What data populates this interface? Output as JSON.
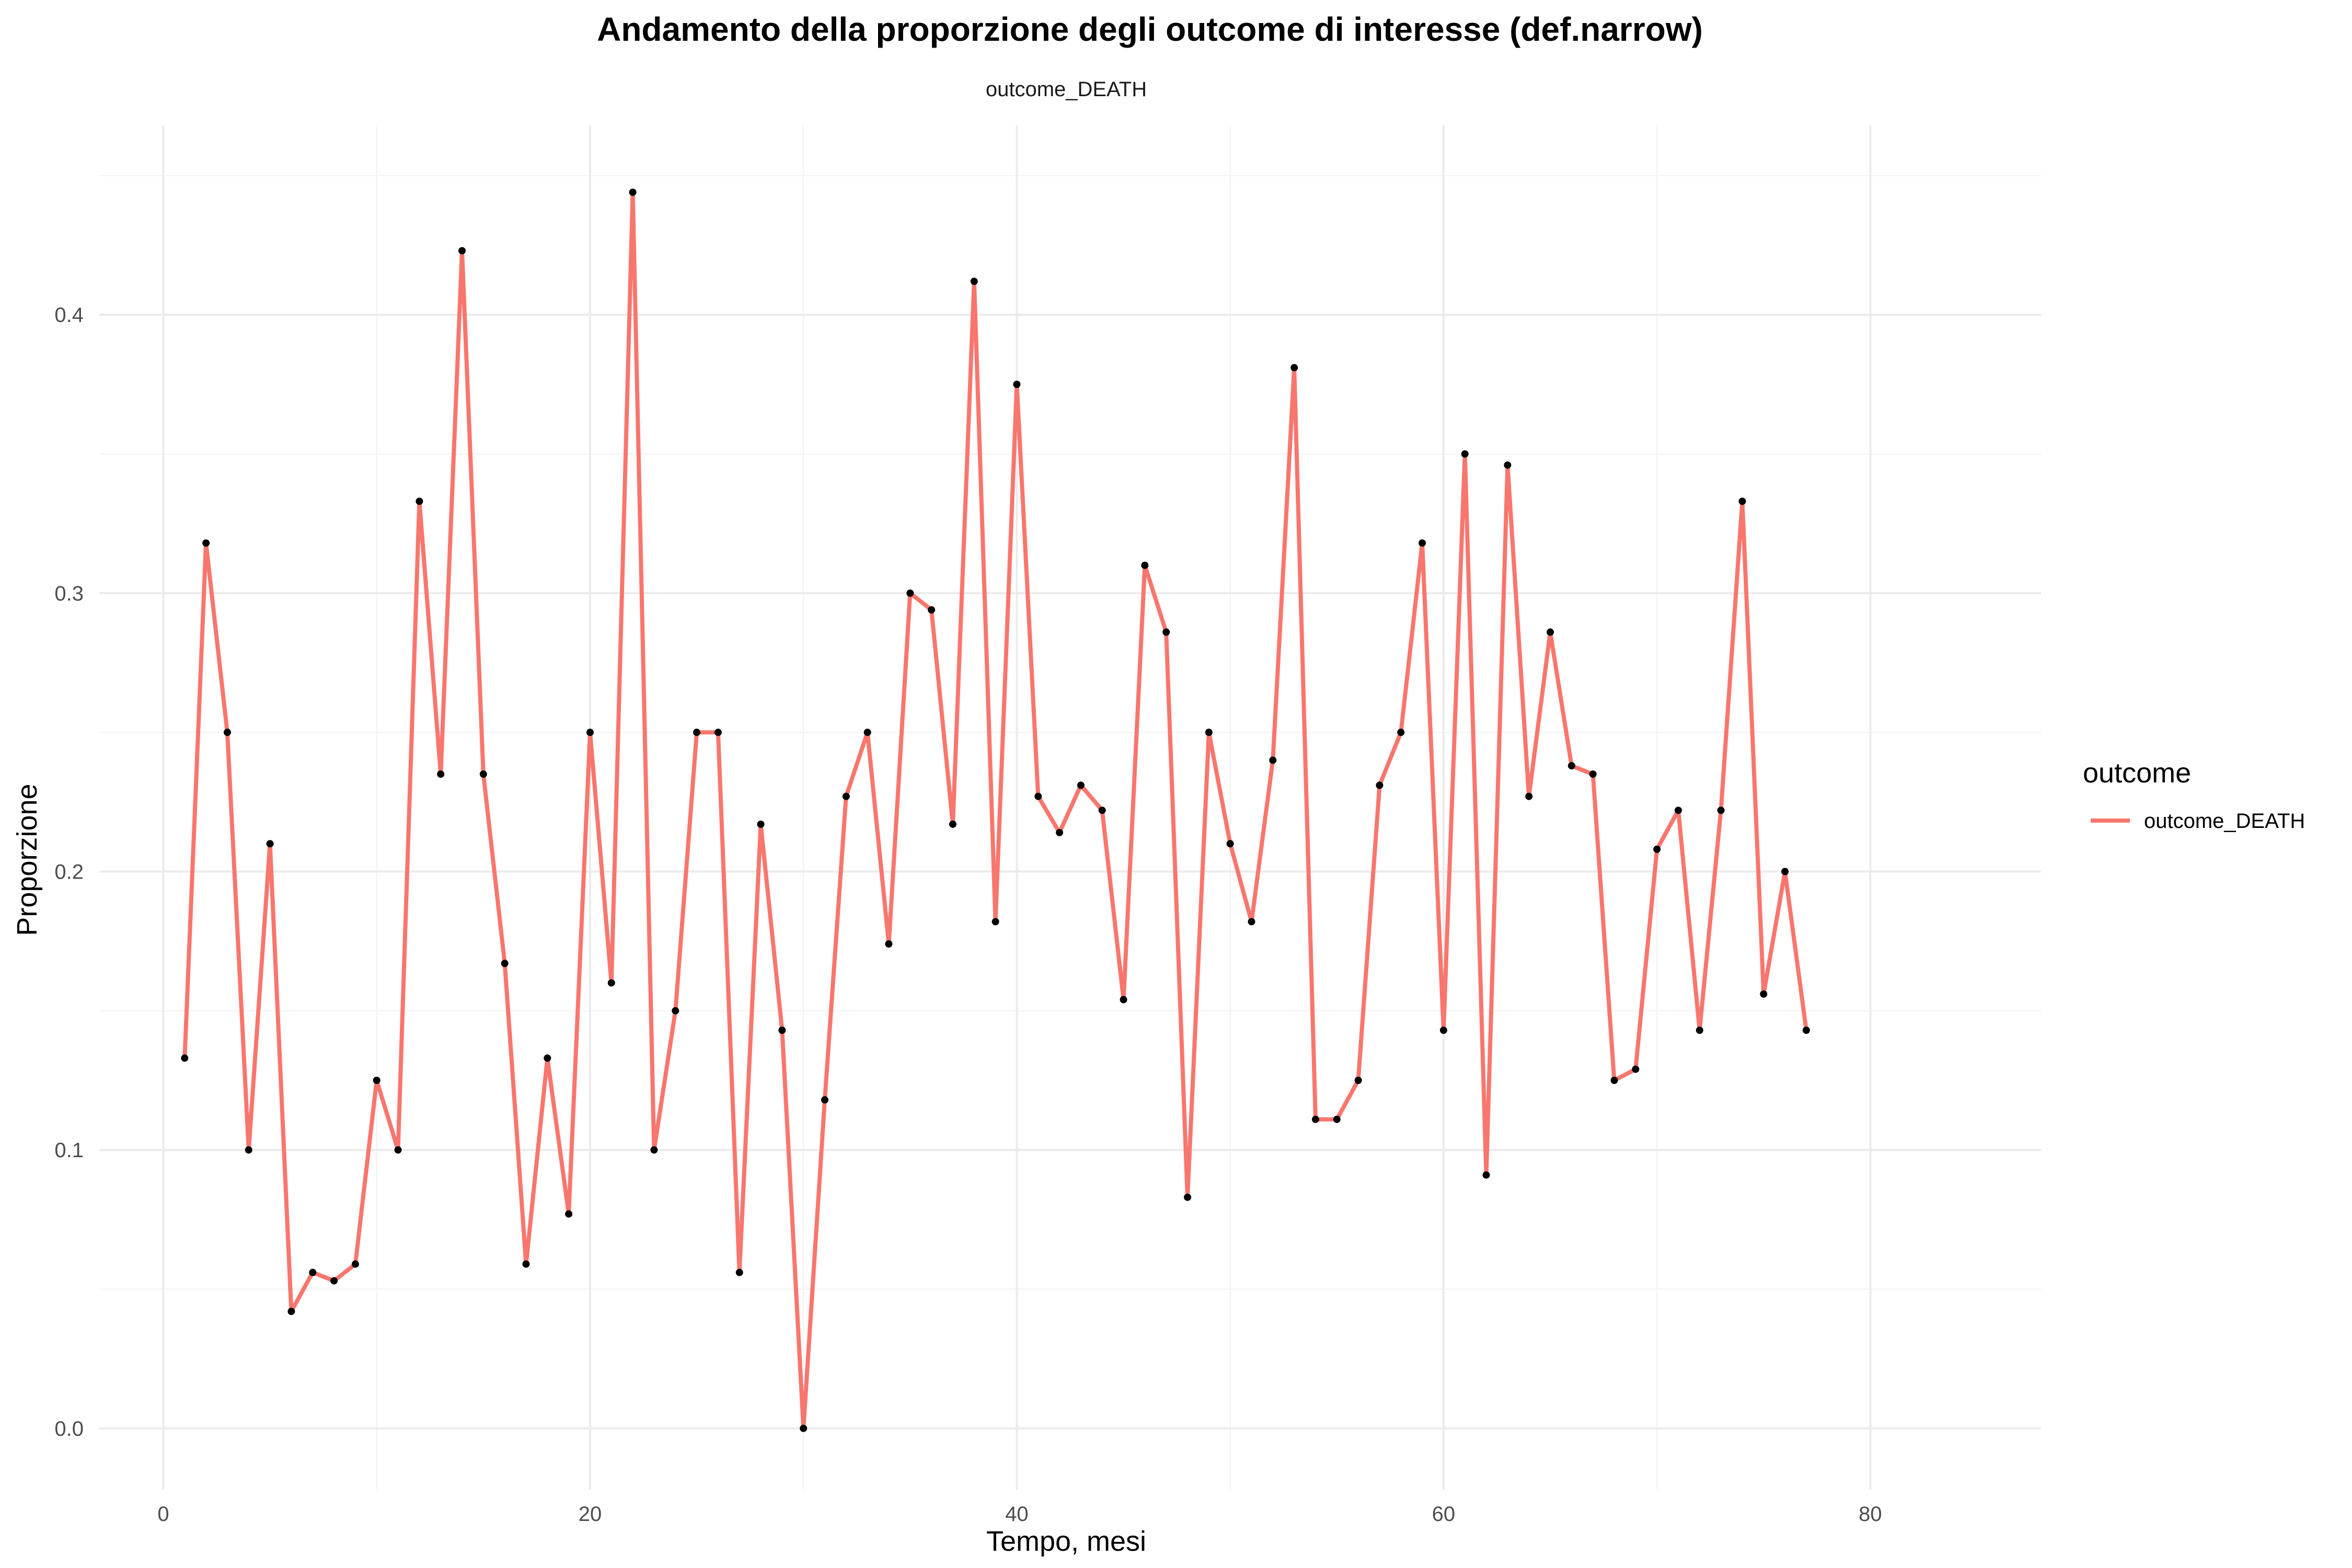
{
  "chart_data": {
    "type": "line",
    "title": "Andamento della proporzione degli outcome di interesse (def.narrow)",
    "facet_label": "outcome_DEATH",
    "xlabel": "Tempo, mesi",
    "ylabel": "Proporzione",
    "xlim": [
      -3,
      88
    ],
    "ylim": [
      -0.022,
      0.468
    ],
    "x_ticks": [
      0,
      20,
      40,
      60,
      80
    ],
    "y_ticks": [
      0.0,
      0.1,
      0.2,
      0.3,
      0.4
    ],
    "x_tick_labels": [
      "0",
      "20",
      "40",
      "60",
      "80"
    ],
    "y_tick_labels": [
      "0.0",
      "0.1",
      "0.2",
      "0.3",
      "0.4"
    ],
    "grid": true,
    "legend": {
      "title": "outcome",
      "position": "right",
      "entries": [
        "outcome_DEATH"
      ]
    },
    "series": [
      {
        "name": "outcome_DEATH",
        "color": "#f8766d",
        "point_color": "#000000",
        "x": [
          1,
          2,
          3,
          4,
          5,
          6,
          7,
          8,
          9,
          10,
          11,
          12,
          13,
          14,
          15,
          16,
          17,
          18,
          19,
          20,
          21,
          22,
          23,
          24,
          25,
          26,
          27,
          28,
          29,
          30,
          31,
          32,
          33,
          34,
          35,
          36,
          37,
          38,
          39,
          40,
          41,
          42,
          43,
          44,
          45,
          46,
          47,
          48,
          49,
          50,
          51,
          52,
          53,
          54,
          55,
          56,
          57,
          58,
          59,
          60,
          61,
          62,
          63,
          64,
          65,
          66,
          67,
          68,
          69,
          70,
          71,
          72,
          73,
          74,
          75,
          76,
          77
        ],
        "values": [
          0.133,
          0.318,
          0.25,
          0.1,
          0.21,
          0.042,
          0.056,
          0.053,
          0.059,
          0.125,
          0.1,
          0.333,
          0.235,
          0.423,
          0.235,
          0.167,
          0.059,
          0.133,
          0.077,
          0.25,
          0.16,
          0.444,
          0.1,
          0.15,
          0.25,
          0.25,
          0.056,
          0.217,
          0.143,
          0.0,
          0.118,
          0.227,
          0.25,
          0.174,
          0.3,
          0.294,
          0.217,
          0.412,
          0.182,
          0.375,
          0.227,
          0.214,
          0.231,
          0.222,
          0.154,
          0.31,
          0.286,
          0.083,
          0.25,
          0.21,
          0.182,
          0.24,
          0.381,
          0.111,
          0.111,
          0.125,
          0.231,
          0.25,
          0.318,
          0.143,
          0.35,
          0.091,
          0.346,
          0.227,
          0.286,
          0.238,
          0.235,
          0.125,
          0.129,
          0.208,
          0.222,
          0.143,
          0.222,
          0.333,
          0.156,
          0.2,
          0.143
        ]
      }
    ]
  }
}
